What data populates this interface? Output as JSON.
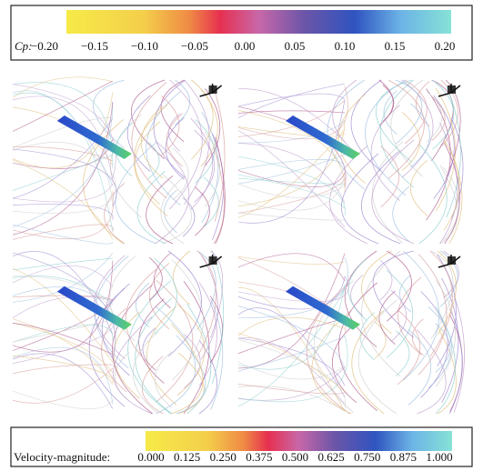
{
  "colorbars": [
    {
      "label": "Cp:",
      "lim": [
        -0.2,
        0.2
      ],
      "ticks": [
        {
          "value": -0.2,
          "label": "−0.20"
        },
        {
          "value": -0.15,
          "label": "−0.15"
        },
        {
          "value": -0.1,
          "label": "−0.10"
        },
        {
          "value": -0.05,
          "label": "−0.05"
        },
        {
          "value": 0,
          "label": "0.00"
        },
        {
          "value": 0.05,
          "label": "0.05"
        },
        {
          "value": 0.1,
          "label": "0.10"
        },
        {
          "value": 0.15,
          "label": "0.15"
        },
        {
          "value": 0.2,
          "label": "0.20"
        }
      ]
    },
    {
      "label": "Velocity-magnitude:",
      "lim": [
        0,
        1
      ],
      "ticks": [
        {
          "value": 0,
          "label": "0.000"
        },
        {
          "value": 0.125,
          "label": "0.125"
        },
        {
          "value": 0.25,
          "label": "0.250"
        },
        {
          "value": 0.375,
          "label": "0.375"
        },
        {
          "value": 0.5,
          "label": "0.500"
        },
        {
          "value": 0.625,
          "label": "0.625"
        },
        {
          "value": 0.75,
          "label": "0.750"
        },
        {
          "value": 0.875,
          "label": "0.875"
        },
        {
          "value": 1,
          "label": "1.000"
        }
      ]
    }
  ]
}
